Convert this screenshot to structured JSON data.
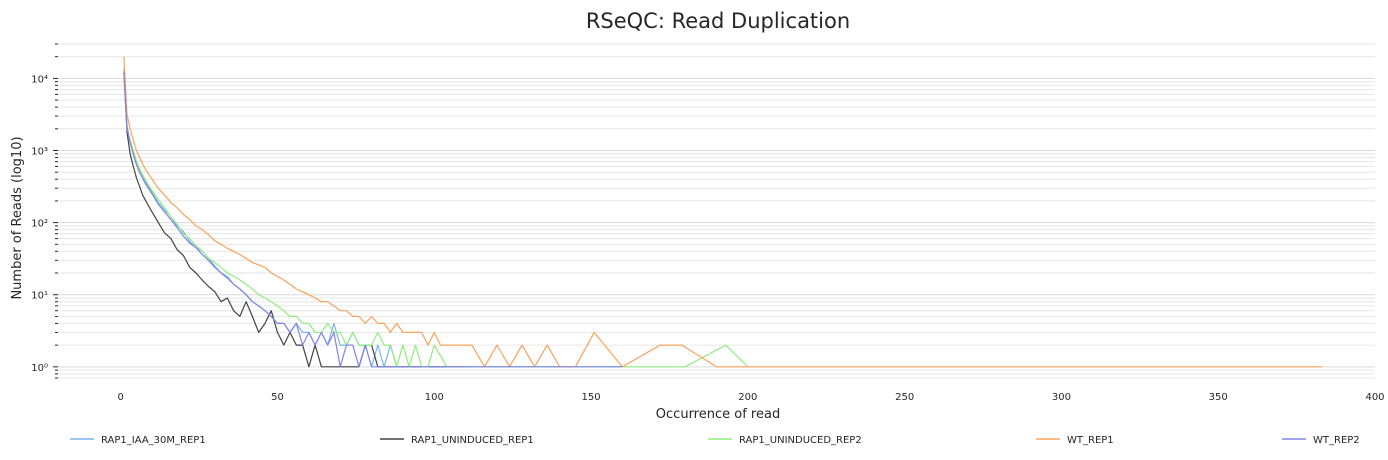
{
  "chart_data": {
    "type": "line",
    "title": "RSeQC: Read Duplication",
    "xlabel": "Occurrence of read",
    "ylabel": "Number of Reads (log10)",
    "yscale": "log",
    "xlim": [
      -20,
      400
    ],
    "ylim": [
      0.7,
      30000
    ],
    "xticks": [
      0,
      50,
      100,
      150,
      200,
      250,
      300,
      350,
      400
    ],
    "xtick_labels": [
      "0",
      "50",
      "100",
      "150",
      "200",
      "250",
      "300",
      "350",
      "400"
    ],
    "yticks": [
      1,
      10,
      100,
      1000,
      10000
    ],
    "ytick_labels": [
      "10⁰",
      "10¹",
      "10²",
      "10³",
      "10⁴"
    ],
    "grid": true,
    "legend_position": "bottom",
    "series": [
      {
        "name": "RAP1_IAA_30M_REP1",
        "color": "#7cb5ec",
        "x": [
          1,
          2,
          3,
          4,
          5,
          6,
          7,
          8,
          10,
          12,
          14,
          16,
          18,
          20,
          22,
          24,
          26,
          28,
          30,
          32,
          34,
          36,
          38,
          40,
          42,
          44,
          46,
          48,
          50,
          52,
          54,
          56,
          58,
          60,
          62,
          64,
          66,
          68,
          70,
          72,
          74,
          76,
          78,
          80,
          82,
          84,
          86,
          88,
          90,
          95,
          100,
          105,
          110,
          120,
          140,
          160
        ],
        "y": [
          14000,
          2200,
          1300,
          900,
          650,
          520,
          420,
          360,
          260,
          190,
          150,
          120,
          90,
          75,
          55,
          45,
          40,
          32,
          25,
          20,
          18,
          14,
          12,
          10,
          8,
          7,
          6,
          5,
          4,
          4,
          3,
          4,
          3,
          3,
          2,
          3,
          2,
          4,
          2,
          2,
          3,
          2,
          2,
          1,
          2,
          1,
          2,
          1,
          1,
          1,
          1,
          1,
          1,
          1,
          1,
          1
        ]
      },
      {
        "name": "RAP1_UNINDUCED_REP1",
        "color": "#434348",
        "x": [
          1,
          2,
          3,
          4,
          5,
          6,
          7,
          8,
          10,
          12,
          14,
          16,
          18,
          20,
          22,
          24,
          26,
          28,
          30,
          32,
          34,
          36,
          38,
          40,
          42,
          44,
          46,
          48,
          50,
          52,
          54,
          56,
          58,
          60,
          62,
          64,
          66,
          68,
          70,
          72,
          74,
          76,
          78,
          80,
          82,
          84,
          86,
          88,
          90,
          95,
          100,
          105,
          110
        ],
        "y": [
          12000,
          1800,
          900,
          600,
          420,
          320,
          240,
          200,
          140,
          100,
          72,
          60,
          42,
          35,
          24,
          20,
          16,
          13,
          11,
          8,
          9,
          6,
          5,
          8,
          5,
          3,
          4,
          6,
          3,
          2,
          3,
          2,
          2,
          1,
          2,
          1,
          1,
          1,
          1,
          1,
          1,
          1,
          2,
          2,
          1,
          1,
          1,
          1,
          1,
          1,
          1,
          1,
          1
        ]
      },
      {
        "name": "RAP1_UNINDUCED_REP2",
        "color": "#90ed7d",
        "x": [
          1,
          2,
          3,
          4,
          5,
          6,
          7,
          8,
          10,
          12,
          14,
          16,
          18,
          20,
          22,
          24,
          26,
          28,
          30,
          32,
          34,
          36,
          38,
          40,
          42,
          44,
          46,
          48,
          50,
          52,
          54,
          56,
          58,
          60,
          62,
          64,
          66,
          68,
          70,
          72,
          74,
          76,
          78,
          80,
          82,
          84,
          86,
          88,
          90,
          92,
          94,
          96,
          98,
          100,
          104,
          108,
          112,
          120,
          140,
          160,
          180,
          193,
          200
        ],
        "y": [
          13000,
          2000,
          1400,
          1000,
          720,
          560,
          460,
          380,
          280,
          210,
          160,
          120,
          95,
          70,
          60,
          48,
          40,
          32,
          28,
          24,
          20,
          18,
          16,
          14,
          12,
          10,
          9,
          8,
          7,
          6,
          5,
          5,
          4,
          4,
          3,
          3,
          4,
          3,
          3,
          2,
          3,
          2,
          2,
          2,
          3,
          2,
          2,
          1,
          2,
          1,
          2,
          1,
          1,
          2,
          1,
          1,
          1,
          1,
          1,
          1,
          1,
          2,
          1
        ]
      },
      {
        "name": "WT_REP1",
        "color": "#f7a35c",
        "x": [
          1,
          2,
          3,
          4,
          5,
          6,
          7,
          8,
          10,
          12,
          14,
          16,
          18,
          20,
          22,
          24,
          26,
          28,
          30,
          32,
          34,
          36,
          38,
          40,
          42,
          44,
          46,
          48,
          50,
          52,
          54,
          56,
          58,
          60,
          62,
          64,
          66,
          68,
          70,
          72,
          74,
          76,
          78,
          80,
          82,
          84,
          86,
          88,
          90,
          92,
          94,
          96,
          98,
          100,
          102,
          104,
          106,
          108,
          110,
          112,
          116,
          120,
          124,
          128,
          132,
          136,
          140,
          145,
          151,
          160,
          172,
          179,
          190,
          200,
          250,
          300,
          350,
          383
        ],
        "y": [
          20000,
          3200,
          2000,
          1400,
          1000,
          800,
          650,
          540,
          400,
          300,
          240,
          190,
          160,
          130,
          110,
          90,
          80,
          68,
          56,
          50,
          44,
          40,
          36,
          32,
          28,
          26,
          24,
          20,
          18,
          16,
          14,
          12,
          11,
          10,
          9,
          8,
          8,
          7,
          6,
          6,
          5,
          5,
          4,
          5,
          4,
          4,
          3,
          4,
          3,
          3,
          3,
          3,
          2,
          3,
          2,
          2,
          2,
          2,
          2,
          2,
          1,
          2,
          1,
          2,
          1,
          2,
          1,
          1,
          3,
          1,
          2,
          2,
          1,
          1,
          1,
          1,
          1,
          1
        ]
      },
      {
        "name": "WT_REP2",
        "color": "#8085e9",
        "x": [
          1,
          2,
          3,
          4,
          5,
          6,
          7,
          8,
          10,
          12,
          14,
          16,
          18,
          20,
          22,
          24,
          26,
          28,
          30,
          32,
          34,
          36,
          38,
          40,
          42,
          44,
          46,
          48,
          50,
          52,
          54,
          56,
          58,
          60,
          62,
          64,
          66,
          68,
          70,
          72,
          74,
          76,
          78,
          80,
          82,
          84,
          86,
          88,
          90,
          95,
          100,
          105,
          110,
          120,
          140,
          160
        ],
        "y": [
          12500,
          2100,
          1300,
          880,
          640,
          500,
          410,
          340,
          250,
          180,
          140,
          110,
          85,
          65,
          52,
          45,
          36,
          30,
          24,
          20,
          17,
          14,
          12,
          10,
          8,
          7,
          6,
          5,
          4,
          4,
          3,
          4,
          2,
          3,
          2,
          3,
          2,
          3,
          1,
          2,
          2,
          1,
          2,
          1,
          1,
          1,
          1,
          1,
          1,
          1,
          1,
          1,
          1,
          1,
          1,
          1
        ]
      }
    ]
  }
}
